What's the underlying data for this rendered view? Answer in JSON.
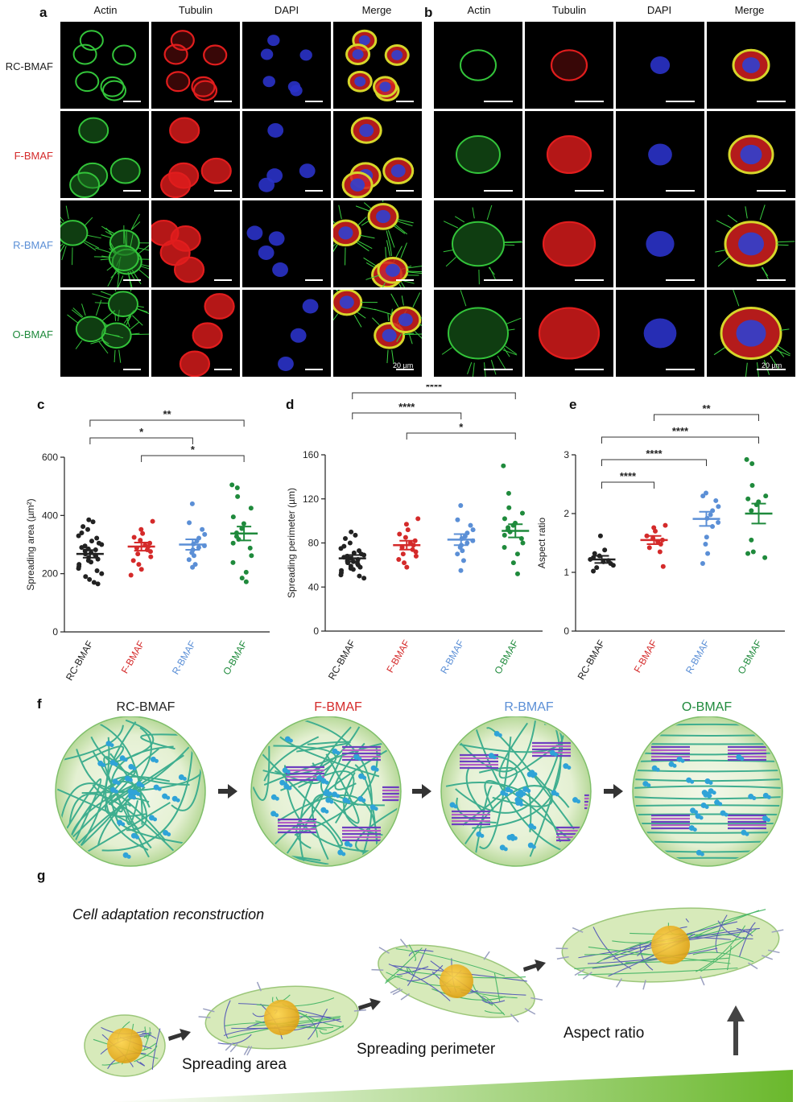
{
  "panels": {
    "a": "a",
    "b": "b",
    "c": "c",
    "d": "d",
    "e": "e",
    "f": "f",
    "g": "g"
  },
  "columns": [
    "Actin",
    "Tubulin",
    "DAPI",
    "Merge"
  ],
  "groups": [
    {
      "name": "RC-BMAF",
      "color": "#222222"
    },
    {
      "name": "F-BMAF",
      "color": "#d42a2a"
    },
    {
      "name": "R-BMAF",
      "color": "#5b8fd6"
    },
    {
      "name": "O-BMAF",
      "color": "#1f8a3c"
    }
  ],
  "scale_bar_label": "20 µm",
  "chart_data": [
    {
      "type": "scatter",
      "panel": "c",
      "ylabel": "Spreading area (µm²)",
      "ylim": [
        0,
        600
      ],
      "yticks": [
        0,
        200,
        400,
        600
      ],
      "categories": [
        "RC-BMAF",
        "F-BMAF",
        "R-BMAF",
        "O-BMAF"
      ],
      "means": [
        268,
        293,
        300,
        338
      ],
      "sem": [
        13,
        14,
        18,
        24
      ],
      "points": [
        [
          385,
          378,
          362,
          352,
          340,
          330,
          322,
          312,
          305,
          300,
          295,
          290,
          285,
          282,
          278,
          272,
          268,
          264,
          260,
          255,
          250,
          245,
          240,
          232,
          225,
          218,
          210,
          200,
          190,
          180,
          170,
          165
        ],
        [
          380,
          352,
          338,
          325,
          315,
          305,
          298,
          292,
          288,
          282,
          276,
          268,
          258,
          245,
          232,
          215,
          195
        ],
        [
          440,
          375,
          352,
          335,
          322,
          312,
          302,
          296,
          290,
          282,
          272,
          262,
          248,
          232,
          222
        ],
        [
          505,
          495,
          465,
          425,
          395,
          372,
          355,
          340,
          328,
          318,
          305,
          288,
          262,
          238,
          205,
          185,
          172
        ]
      ],
      "significance": [
        {
          "from": 0,
          "to": 3,
          "label": "**"
        },
        {
          "from": 0,
          "to": 2,
          "label": "*"
        },
        {
          "from": 1,
          "to": 3,
          "label": "*"
        }
      ]
    },
    {
      "type": "scatter",
      "panel": "d",
      "ylabel": "Spreading perimeter (µm)",
      "ylim": [
        0,
        160
      ],
      "yticks": [
        0,
        40,
        80,
        120,
        160
      ],
      "categories": [
        "RC-BMAF",
        "F-BMAF",
        "R-BMAF",
        "O-BMAF"
      ],
      "means": [
        66,
        78,
        83,
        91
      ],
      "sem": [
        3,
        4,
        5,
        6
      ],
      "points": [
        [
          90,
          87,
          84,
          80,
          77,
          75,
          73,
          71,
          70,
          69,
          68,
          67,
          66,
          65,
          64,
          63,
          62,
          61,
          60,
          59,
          58,
          57,
          56,
          55,
          53,
          51,
          50,
          48
        ],
        [
          102,
          97,
          92,
          88,
          85,
          82,
          80,
          78,
          76,
          74,
          72,
          70,
          68,
          65,
          62,
          58
        ],
        [
          114,
          101,
          96,
          92,
          89,
          86,
          84,
          82,
          80,
          78,
          76,
          73,
          70,
          64,
          55
        ],
        [
          150,
          125,
          112,
          107,
          102,
          98,
          96,
          94,
          92,
          90,
          87,
          84,
          80,
          76,
          70,
          62,
          52
        ]
      ],
      "significance": [
        {
          "from": 0,
          "to": 3,
          "label": "****"
        },
        {
          "from": 0,
          "to": 2,
          "label": "****"
        },
        {
          "from": 1,
          "to": 3,
          "label": "*"
        }
      ]
    },
    {
      "type": "scatter",
      "panel": "e",
      "ylabel": "Aspect ratio",
      "ylim": [
        0,
        3
      ],
      "yticks": [
        0,
        1,
        2,
        3
      ],
      "categories": [
        "RC-BMAF",
        "F-BMAF",
        "R-BMAF",
        "O-BMAF"
      ],
      "means": [
        1.22,
        1.55,
        1.91,
        2.0
      ],
      "sem": [
        0.06,
        0.07,
        0.12,
        0.17
      ],
      "points": [
        [
          1.62,
          1.38,
          1.32,
          1.28,
          1.25,
          1.22,
          1.2,
          1.18,
          1.15,
          1.12,
          1.08,
          1.02
        ],
        [
          1.8,
          1.76,
          1.7,
          1.62,
          1.58,
          1.55,
          1.52,
          1.48,
          1.42,
          1.35,
          1.1
        ],
        [
          2.35,
          2.3,
          2.22,
          2.12,
          2.05,
          1.98,
          1.92,
          1.85,
          1.78,
          1.6,
          1.48,
          1.32,
          1.15
        ],
        [
          2.92,
          2.85,
          2.48,
          2.3,
          2.25,
          2.2,
          2.15,
          2.05,
          1.55,
          1.35,
          1.32,
          1.25
        ]
      ],
      "significance": [
        {
          "from": 1,
          "to": 3,
          "label": "**"
        },
        {
          "from": 0,
          "to": 3,
          "label": "****"
        },
        {
          "from": 0,
          "to": 2,
          "label": "****"
        },
        {
          "from": 0,
          "to": 1,
          "label": "****"
        }
      ]
    }
  ],
  "schematic_titles": [
    "RC-BMAF",
    "F-BMAF",
    "R-BMAF",
    "O-BMAF"
  ],
  "panel_g": {
    "title": "Cell adaptation reconstruction",
    "label_area": "Spreading area",
    "label_perimeter": "Spreading perimeter",
    "label_aspect": "Aspect ratio"
  }
}
